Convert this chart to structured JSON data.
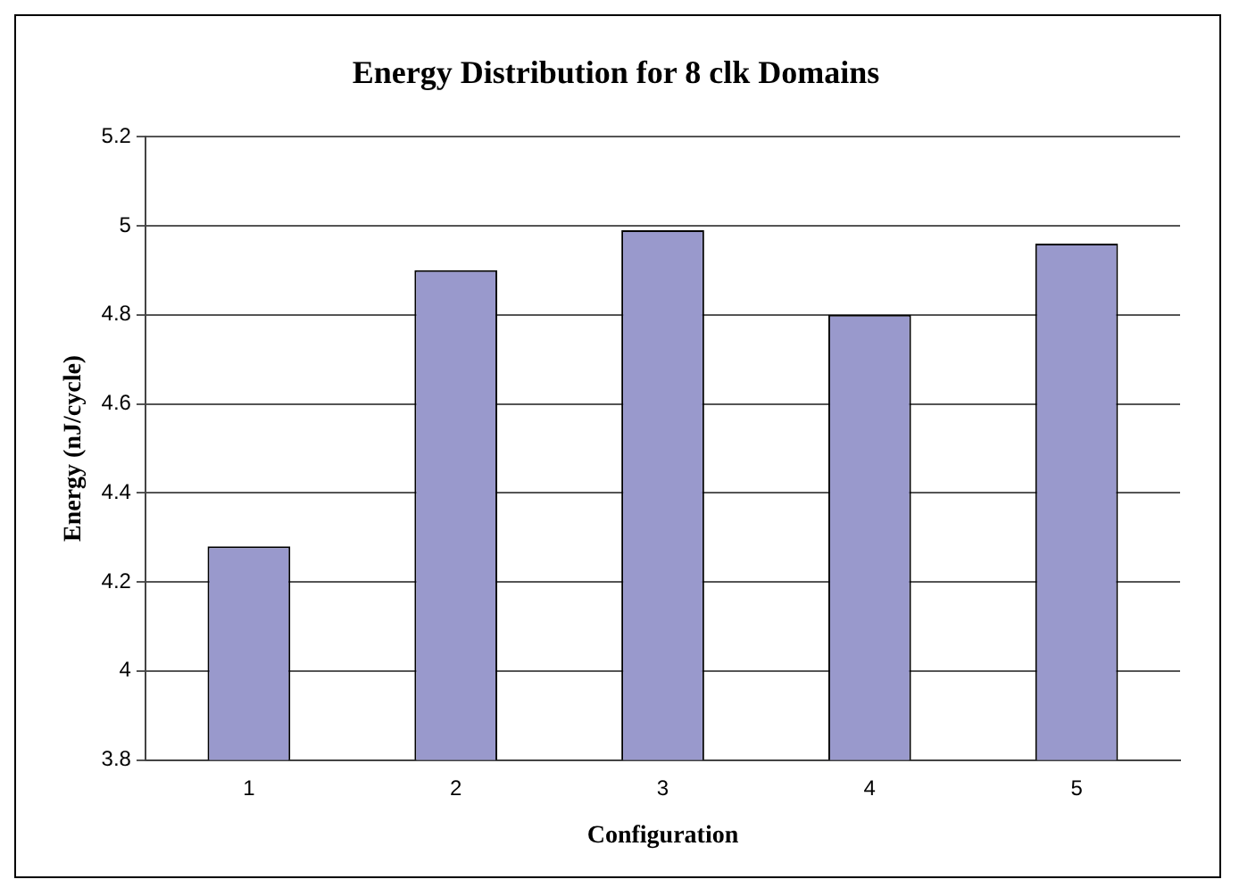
{
  "chart_data": {
    "type": "bar",
    "title": "Energy Distribution for 8 clk Domains",
    "xlabel": "Configuration",
    "ylabel": "Energy (nJ/cycle)",
    "categories": [
      "1",
      "2",
      "3",
      "4",
      "5"
    ],
    "values": [
      4.28,
      4.9,
      4.99,
      4.8,
      4.96
    ],
    "color": "#9999cc",
    "ylim": [
      3.8,
      5.2
    ],
    "yticks": [
      3.8,
      4,
      4.2,
      4.4,
      4.6,
      4.8,
      5,
      5.2
    ],
    "grid": "y",
    "legend": false
  }
}
